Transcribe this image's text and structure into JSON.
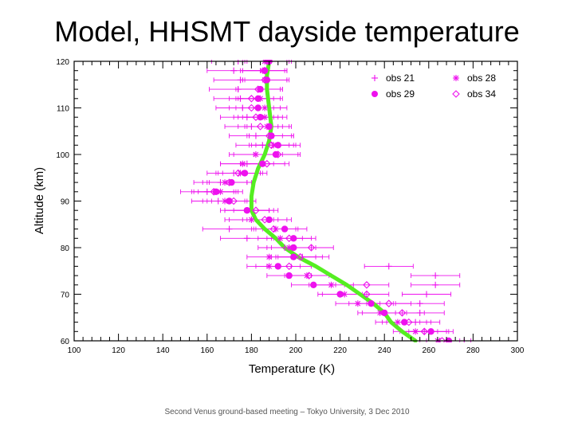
{
  "slide": {
    "title": "Model, HHSMT dayside temperature",
    "footer": "Second Venus ground-based meeting – Tokyo University, 3 Dec 2010"
  },
  "colors": {
    "obs": "#ee11ee",
    "model": "#55ee22",
    "axis": "#000000"
  },
  "chart_data": {
    "type": "scatter",
    "xlabel": "Temperature (K)",
    "ylabel": "Altitude (km)",
    "xlim": [
      100,
      300
    ],
    "ylim": [
      60,
      120
    ],
    "xticks": [
      100,
      120,
      140,
      160,
      180,
      200,
      220,
      240,
      260,
      280,
      300
    ],
    "yticks": [
      60,
      70,
      80,
      90,
      100,
      110,
      120
    ],
    "grid": false,
    "legend_position": "top-right",
    "series": [
      {
        "name": "obs 21",
        "marker": "plus",
        "points": [
          {
            "y": 120,
            "x": 174,
            "err": 12
          },
          {
            "y": 118,
            "x": 172,
            "err": 12
          },
          {
            "y": 116,
            "x": 175,
            "err": 12
          },
          {
            "y": 114,
            "x": 174,
            "err": 13
          },
          {
            "y": 112,
            "x": 175,
            "err": 12
          },
          {
            "y": 110,
            "x": 176,
            "err": 12
          },
          {
            "y": 108,
            "x": 178,
            "err": 12
          },
          {
            "y": 106,
            "x": 180,
            "err": 12
          },
          {
            "y": 104,
            "x": 182,
            "err": 12
          },
          {
            "y": 102,
            "x": 185,
            "err": 12
          },
          {
            "y": 100,
            "x": 182,
            "err": 12
          },
          {
            "y": 98,
            "x": 178,
            "err": 12
          },
          {
            "y": 96,
            "x": 172,
            "err": 12
          },
          {
            "y": 94,
            "x": 166,
            "err": 12
          },
          {
            "y": 92,
            "x": 160,
            "err": 12
          },
          {
            "y": 90,
            "x": 165,
            "err": 12
          },
          {
            "y": 88,
            "x": 178,
            "err": 12
          },
          {
            "y": 86,
            "x": 180,
            "err": 12
          },
          {
            "y": 84,
            "x": 170,
            "err": 12
          },
          {
            "y": 82,
            "x": 178,
            "err": 12
          },
          {
            "y": 80,
            "x": 195,
            "err": 12
          },
          {
            "y": 78,
            "x": 203,
            "err": 12
          },
          {
            "y": 76,
            "x": 242,
            "err": 11
          },
          {
            "y": 74,
            "x": 263,
            "err": 11
          },
          {
            "y": 72,
            "x": 263,
            "err": 11
          },
          {
            "y": 70,
            "x": 259,
            "err": 11
          },
          {
            "y": 68,
            "x": 256,
            "err": 11
          },
          {
            "y": 66,
            "x": 256,
            "err": 11
          },
          {
            "y": 64,
            "x": 254,
            "err": 11
          },
          {
            "y": 62,
            "x": 258,
            "err": 11
          },
          {
            "y": 60,
            "x": 265,
            "err": 11
          }
        ]
      },
      {
        "name": "obs 28",
        "marker": "asterisk",
        "points": [
          {
            "y": 120,
            "x": 186,
            "err": 10
          },
          {
            "y": 118,
            "x": 185,
            "err": 10
          },
          {
            "y": 116,
            "x": 186,
            "err": 10
          },
          {
            "y": 114,
            "x": 184,
            "err": 10
          },
          {
            "y": 112,
            "x": 184,
            "err": 10
          },
          {
            "y": 110,
            "x": 186,
            "err": 10
          },
          {
            "y": 108,
            "x": 186,
            "err": 10
          },
          {
            "y": 106,
            "x": 187,
            "err": 10
          },
          {
            "y": 104,
            "x": 189,
            "err": 10
          },
          {
            "y": 102,
            "x": 190,
            "err": 10
          },
          {
            "y": 100,
            "x": 182,
            "err": 10
          },
          {
            "y": 98,
            "x": 176,
            "err": 10
          },
          {
            "y": 96,
            "x": 175,
            "err": 10
          },
          {
            "y": 94,
            "x": 168,
            "err": 10
          },
          {
            "y": 92,
            "x": 166,
            "err": 10
          },
          {
            "y": 90,
            "x": 168,
            "err": 10
          },
          {
            "y": 88,
            "x": 178,
            "err": 10
          },
          {
            "y": 86,
            "x": 180,
            "err": 10
          },
          {
            "y": 84,
            "x": 191,
            "err": 10
          },
          {
            "y": 82,
            "x": 193,
            "err": 10
          },
          {
            "y": 80,
            "x": 197,
            "err": 10
          },
          {
            "y": 78,
            "x": 188,
            "err": 10
          },
          {
            "y": 76,
            "x": 188,
            "err": 10
          },
          {
            "y": 74,
            "x": 205,
            "err": 10
          },
          {
            "y": 72,
            "x": 216,
            "err": 10
          },
          {
            "y": 70,
            "x": 222,
            "err": 10
          },
          {
            "y": 68,
            "x": 228,
            "err": 10
          },
          {
            "y": 66,
            "x": 238,
            "err": 10
          },
          {
            "y": 64,
            "x": 246,
            "err": 10
          },
          {
            "y": 62,
            "x": 254,
            "err": 10
          },
          {
            "y": 60,
            "x": 264,
            "err": 10
          }
        ]
      },
      {
        "name": "obs 29",
        "marker": "filled-circle",
        "points": [
          {
            "y": 120,
            "x": 188,
            "err": 10
          },
          {
            "y": 118,
            "x": 186,
            "err": 10
          },
          {
            "y": 116,
            "x": 187,
            "err": 10
          },
          {
            "y": 114,
            "x": 184,
            "err": 10
          },
          {
            "y": 112,
            "x": 183,
            "err": 10
          },
          {
            "y": 110,
            "x": 183,
            "err": 10
          },
          {
            "y": 108,
            "x": 184,
            "err": 10
          },
          {
            "y": 106,
            "x": 188,
            "err": 10
          },
          {
            "y": 104,
            "x": 189,
            "err": 10
          },
          {
            "y": 102,
            "x": 192,
            "err": 10
          },
          {
            "y": 100,
            "x": 191,
            "err": 10
          },
          {
            "y": 98,
            "x": 185,
            "err": 10
          },
          {
            "y": 96,
            "x": 177,
            "err": 10
          },
          {
            "y": 94,
            "x": 171,
            "err": 10
          },
          {
            "y": 92,
            "x": 164,
            "err": 10
          },
          {
            "y": 90,
            "x": 170,
            "err": 10
          },
          {
            "y": 88,
            "x": 178,
            "err": 10
          },
          {
            "y": 86,
            "x": 188,
            "err": 10
          },
          {
            "y": 84,
            "x": 195,
            "err": 10
          },
          {
            "y": 82,
            "x": 199,
            "err": 10
          },
          {
            "y": 80,
            "x": 199,
            "err": 10
          },
          {
            "y": 78,
            "x": 199,
            "err": 10
          },
          {
            "y": 76,
            "x": 192,
            "err": 10
          },
          {
            "y": 74,
            "x": 197,
            "err": 10
          },
          {
            "y": 72,
            "x": 208,
            "err": 10
          },
          {
            "y": 70,
            "x": 220,
            "err": 10
          },
          {
            "y": 68,
            "x": 234,
            "err": 10
          },
          {
            "y": 66,
            "x": 240,
            "err": 10
          },
          {
            "y": 64,
            "x": 249,
            "err": 10
          },
          {
            "y": 62,
            "x": 261,
            "err": 10
          },
          {
            "y": 60,
            "x": 269,
            "err": 10
          }
        ]
      },
      {
        "name": "obs 34",
        "marker": "open-diamond",
        "points": [
          {
            "y": 120,
            "x": 187,
            "err": 10
          },
          {
            "y": 118,
            "x": 186,
            "err": 10
          },
          {
            "y": 116,
            "x": 186,
            "err": 10
          },
          {
            "y": 114,
            "x": 183,
            "err": 10
          },
          {
            "y": 112,
            "x": 180,
            "err": 10
          },
          {
            "y": 110,
            "x": 180,
            "err": 10
          },
          {
            "y": 108,
            "x": 182,
            "err": 10
          },
          {
            "y": 106,
            "x": 184,
            "err": 10
          },
          {
            "y": 104,
            "x": 188,
            "err": 10
          },
          {
            "y": 102,
            "x": 189,
            "err": 10
          },
          {
            "y": 100,
            "x": 192,
            "err": 10
          },
          {
            "y": 98,
            "x": 187,
            "err": 10
          },
          {
            "y": 96,
            "x": 174,
            "err": 10
          },
          {
            "y": 94,
            "x": 170,
            "err": 10
          },
          {
            "y": 92,
            "x": 163,
            "err": 10
          },
          {
            "y": 90,
            "x": 172,
            "err": 10
          },
          {
            "y": 88,
            "x": 182,
            "err": 10
          },
          {
            "y": 86,
            "x": 186,
            "err": 10
          },
          {
            "y": 84,
            "x": 190,
            "err": 10
          },
          {
            "y": 82,
            "x": 197,
            "err": 10
          },
          {
            "y": 80,
            "x": 207,
            "err": 10
          },
          {
            "y": 78,
            "x": 202,
            "err": 10
          },
          {
            "y": 76,
            "x": 197,
            "err": 10
          },
          {
            "y": 74,
            "x": 206,
            "err": 10
          },
          {
            "y": 72,
            "x": 232,
            "err": 10
          },
          {
            "y": 70,
            "x": 232,
            "err": 10
          },
          {
            "y": 68,
            "x": 242,
            "err": 10
          },
          {
            "y": 66,
            "x": 248,
            "err": 10
          },
          {
            "y": 64,
            "x": 251,
            "err": 10
          },
          {
            "y": 62,
            "x": 258,
            "err": 10
          },
          {
            "y": 60,
            "x": 266,
            "err": 10
          }
        ]
      }
    ],
    "model": {
      "points": [
        {
          "y": 120,
          "x": 188
        },
        {
          "y": 117,
          "x": 187
        },
        {
          "y": 114,
          "x": 187
        },
        {
          "y": 110,
          "x": 188
        },
        {
          "y": 106,
          "x": 189
        },
        {
          "y": 103,
          "x": 188
        },
        {
          "y": 100,
          "x": 186
        },
        {
          "y": 97,
          "x": 183
        },
        {
          "y": 94,
          "x": 181
        },
        {
          "y": 91,
          "x": 180
        },
        {
          "y": 88,
          "x": 180
        },
        {
          "y": 86,
          "x": 182
        },
        {
          "y": 84,
          "x": 186
        },
        {
          "y": 82,
          "x": 191
        },
        {
          "y": 80,
          "x": 195
        },
        {
          "y": 78,
          "x": 201
        },
        {
          "y": 76,
          "x": 209
        },
        {
          "y": 74,
          "x": 216
        },
        {
          "y": 72,
          "x": 223
        },
        {
          "y": 70,
          "x": 229
        },
        {
          "y": 68,
          "x": 235
        },
        {
          "y": 66,
          "x": 240
        },
        {
          "y": 64,
          "x": 243
        },
        {
          "y": 62,
          "x": 248
        },
        {
          "y": 61,
          "x": 251
        },
        {
          "y": 60,
          "x": 254
        }
      ]
    }
  }
}
